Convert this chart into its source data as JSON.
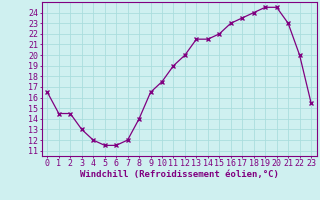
{
  "x": [
    0,
    1,
    2,
    3,
    4,
    5,
    6,
    7,
    8,
    9,
    10,
    11,
    12,
    13,
    14,
    15,
    16,
    17,
    18,
    19,
    20,
    21,
    22,
    23
  ],
  "y": [
    16.5,
    14.5,
    14.5,
    13.0,
    12.0,
    11.5,
    11.5,
    12.0,
    14.0,
    16.5,
    17.5,
    19.0,
    20.0,
    21.5,
    21.5,
    22.0,
    23.0,
    23.5,
    24.0,
    24.5,
    24.5,
    23.0,
    20.0,
    15.5
  ],
  "line_color": "#800080",
  "marker": "x",
  "bg_color": "#cff0f0",
  "grid_color": "#aadddd",
  "xlabel": "Windchill (Refroidissement éolien,°C)",
  "xlabel_color": "#800080",
  "ylabel_ticks": [
    11,
    12,
    13,
    14,
    15,
    16,
    17,
    18,
    19,
    20,
    21,
    22,
    23,
    24
  ],
  "xlim": [
    -0.5,
    23.5
  ],
  "ylim": [
    10.5,
    25.0
  ],
  "tick_color": "#800080",
  "label_fontsize": 6.5,
  "tick_fontsize": 6.0
}
